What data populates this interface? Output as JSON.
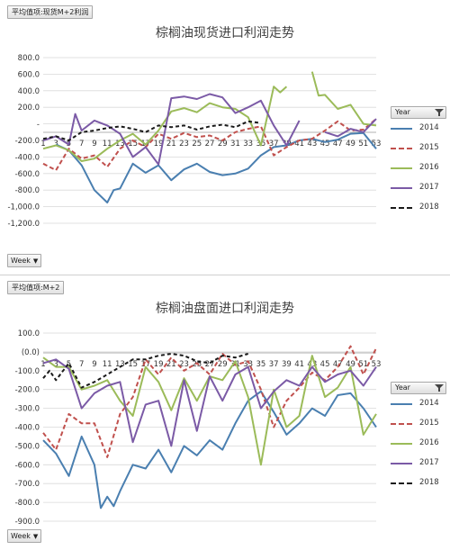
{
  "colors": {
    "2014": "#4a7fb0",
    "2015": "#c0504d",
    "2016": "#9bbb59",
    "2017": "#7b5aa6",
    "2018": "#1a1a1a"
  },
  "legend": {
    "header": "Year",
    "items": [
      "2014",
      "2015",
      "2016",
      "2017",
      "2018"
    ]
  },
  "panels": [
    {
      "pivot_field": "平均值项:现货M+2利润",
      "title": "棕榈油现货进口利润走势",
      "axis_button": "Week",
      "x_ticks": [
        "1",
        "3",
        "5",
        "7",
        "9",
        "11",
        "13",
        "15",
        "17",
        "19",
        "21",
        "23",
        "25",
        "27",
        "29",
        "31",
        "33",
        "35",
        "37",
        "39",
        "41",
        "43",
        "45",
        "47",
        "49",
        "51",
        "53"
      ],
      "y_tick_labels": [
        "800.0",
        "600.0",
        "400.0",
        "200.0",
        "-",
        "-200.0",
        "-400.0",
        "-600.0",
        "-800.0",
        "-1,000.0",
        "-1,200.0"
      ]
    },
    {
      "pivot_field": "平均值项:M+2",
      "title": "棕榈油盘面进口利润走势",
      "axis_button": "Week",
      "x_ticks": [
        "1",
        "3",
        "5",
        "7",
        "9",
        "11",
        "13",
        "15",
        "17",
        "19",
        "21",
        "23",
        "25",
        "27",
        "29",
        "31",
        "33",
        "35",
        "37",
        "39",
        "41",
        "43",
        "45",
        "47",
        "49",
        "51",
        "53"
      ],
      "y_tick_labels": [
        "100.0",
        "(0.0)",
        "-100.0",
        "-200.0",
        "-300.0",
        "-400.0",
        "-500.0",
        "-600.0",
        "-700.0",
        "-800.0",
        "-900.0"
      ]
    }
  ],
  "chart_data": [
    {
      "type": "line",
      "title": "棕榈油现货进口利润走势",
      "xlabel": "Week",
      "ylabel": "",
      "ylim": [
        -1200,
        800
      ],
      "xlim": [
        1,
        53
      ],
      "legend_position": "right",
      "series": [
        {
          "name": "2014",
          "x": [
            3,
            5,
            7,
            9,
            11,
            12,
            13,
            15,
            17,
            19,
            21,
            23,
            25,
            27,
            29,
            31,
            33,
            35,
            37,
            39,
            41,
            43,
            45,
            47,
            49,
            51,
            53
          ],
          "values": [
            -250,
            -320,
            -500,
            -800,
            -950,
            -800,
            -780,
            -480,
            -590,
            -500,
            -680,
            -550,
            -480,
            -580,
            -620,
            -600,
            -540,
            -380,
            -280,
            -260,
            -200,
            -180,
            -220,
            -190,
            -120,
            -110,
            -300
          ]
        },
        {
          "name": "2015",
          "x": [
            1,
            3,
            5,
            7,
            9,
            11,
            13,
            15,
            17,
            19,
            21,
            23,
            25,
            27,
            29,
            31,
            33,
            35,
            37,
            39,
            41,
            43,
            45,
            47,
            49,
            51,
            53
          ],
          "values": [
            -480,
            -560,
            -300,
            -420,
            -380,
            -520,
            -300,
            -200,
            -280,
            -120,
            -180,
            -110,
            -160,
            -140,
            -200,
            -100,
            -60,
            -30,
            -380,
            -280,
            -200,
            -180,
            -80,
            30,
            -80,
            -70,
            60
          ]
        },
        {
          "name": "2016",
          "x": [
            1,
            3,
            5,
            7,
            9,
            11,
            13,
            15,
            17,
            19,
            21,
            23,
            25,
            27,
            29,
            31,
            33,
            35,
            37,
            38,
            39,
            41,
            43,
            44,
            45,
            47,
            49,
            51,
            53
          ],
          "values": [
            -300,
            -260,
            -320,
            -450,
            -420,
            -300,
            -200,
            -120,
            -250,
            -80,
            150,
            190,
            140,
            250,
            200,
            180,
            80,
            -260,
            450,
            380,
            450,
            null,
            630,
            340,
            350,
            180,
            230,
            0,
            -20
          ]
        },
        {
          "name": "2017",
          "x": [
            1,
            3,
            5,
            6,
            7,
            9,
            11,
            13,
            15,
            17,
            19,
            21,
            23,
            25,
            27,
            29,
            31,
            33,
            35,
            37,
            39,
            41,
            43,
            45,
            47,
            49,
            51,
            53
          ],
          "values": [
            -200,
            -150,
            -250,
            120,
            -80,
            40,
            -20,
            -120,
            -400,
            -280,
            -490,
            310,
            330,
            300,
            360,
            320,
            130,
            200,
            280,
            -20,
            -260,
            40,
            null,
            -100,
            -150,
            -60,
            -100,
            60
          ]
        },
        {
          "name": "2018",
          "x": [
            1,
            3,
            5,
            7,
            9,
            11,
            13,
            15,
            17,
            19,
            21,
            23,
            25,
            27,
            29,
            31,
            33,
            35
          ],
          "values": [
            -180,
            -150,
            -200,
            -100,
            -80,
            -50,
            -30,
            -60,
            -100,
            -20,
            -40,
            -20,
            -70,
            -30,
            -10,
            -40,
            30,
            10
          ]
        }
      ]
    },
    {
      "type": "line",
      "title": "棕榈油盘面进口利润走势",
      "xlabel": "Week",
      "ylabel": "",
      "ylim": [
        -900,
        100
      ],
      "xlim": [
        1,
        53
      ],
      "legend_position": "right",
      "series": [
        {
          "name": "2014",
          "x": [
            1,
            3,
            5,
            7,
            9,
            10,
            11,
            12,
            13,
            15,
            17,
            19,
            21,
            23,
            25,
            27,
            29,
            31,
            33,
            35,
            37,
            39,
            41,
            43,
            45,
            47,
            49,
            51,
            53
          ],
          "values": [
            -470,
            -540,
            -660,
            -450,
            -600,
            -830,
            -770,
            -820,
            -740,
            -600,
            -620,
            -520,
            -640,
            -500,
            -550,
            -470,
            -520,
            -380,
            -260,
            -210,
            -320,
            -440,
            -380,
            -300,
            -340,
            -230,
            -220,
            -300,
            -400
          ]
        },
        {
          "name": "2015",
          "x": [
            1,
            3,
            5,
            7,
            9,
            11,
            13,
            15,
            17,
            19,
            21,
            23,
            25,
            27,
            29,
            31,
            33,
            35,
            37,
            39,
            41,
            43,
            45,
            47,
            49,
            51,
            53
          ],
          "values": [
            -430,
            -520,
            -330,
            -380,
            -380,
            -560,
            -330,
            -240,
            -40,
            -120,
            -30,
            -100,
            -60,
            -120,
            -10,
            -70,
            -50,
            -200,
            -400,
            -260,
            -190,
            -110,
            -150,
            -80,
            30,
            -120,
            20
          ]
        },
        {
          "name": "2016",
          "x": [
            1,
            3,
            5,
            7,
            9,
            11,
            13,
            15,
            17,
            19,
            21,
            23,
            25,
            27,
            29,
            31,
            33,
            35,
            37,
            39,
            41,
            43,
            45,
            47,
            49,
            51,
            53
          ],
          "values": [
            -30,
            -80,
            -80,
            -200,
            -180,
            -150,
            -260,
            -340,
            -80,
            -160,
            -310,
            -140,
            -260,
            -130,
            -150,
            -50,
            -240,
            -600,
            -200,
            -400,
            -340,
            -20,
            -240,
            -190,
            -80,
            -440,
            -330
          ]
        },
        {
          "name": "2017",
          "x": [
            1,
            3,
            5,
            7,
            9,
            11,
            13,
            15,
            17,
            19,
            21,
            23,
            25,
            27,
            29,
            31,
            33,
            35,
            37,
            39,
            41,
            43,
            45,
            47,
            49,
            51,
            53
          ],
          "values": [
            -60,
            -40,
            -90,
            -300,
            -220,
            -180,
            -160,
            -480,
            -280,
            -260,
            -500,
            -150,
            -420,
            -130,
            -260,
            -120,
            -80,
            -300,
            -210,
            -150,
            -180,
            -80,
            -160,
            -120,
            -100,
            -180,
            -80
          ]
        },
        {
          "name": "2018",
          "x": [
            1,
            2,
            3,
            5,
            7,
            9,
            11,
            13,
            15,
            17,
            19,
            21,
            23,
            25,
            27,
            29,
            31,
            33
          ],
          "values": [
            -140,
            -100,
            -150,
            -60,
            -190,
            -160,
            -120,
            -80,
            -40,
            -40,
            -20,
            -10,
            -20,
            -50,
            -60,
            -20,
            -30,
            -10
          ]
        }
      ]
    }
  ]
}
